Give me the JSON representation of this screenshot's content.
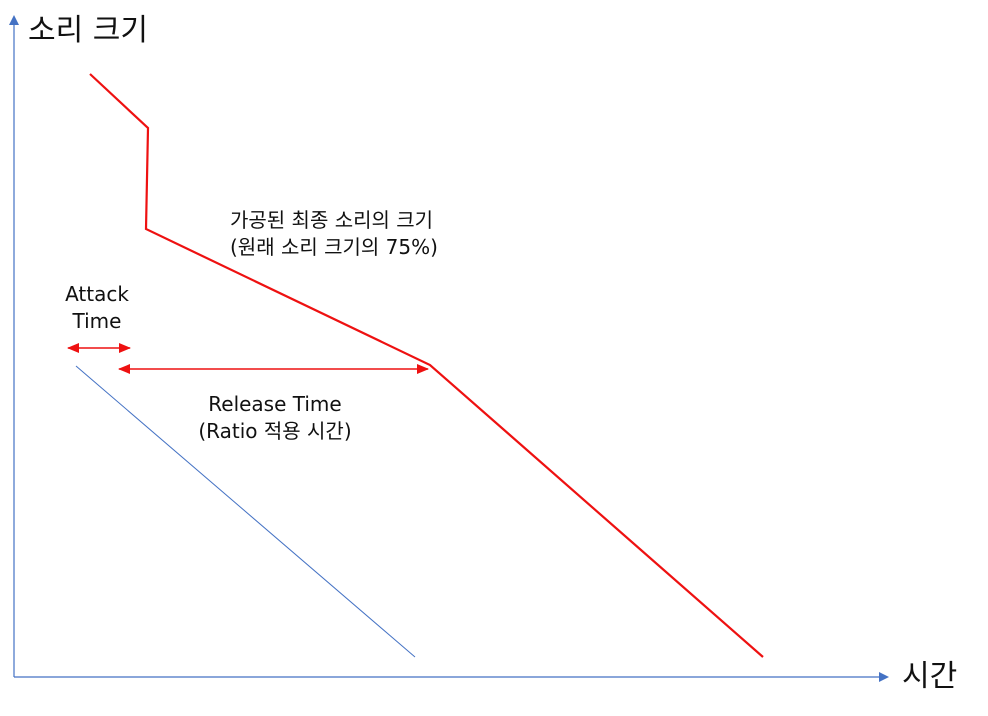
{
  "axes": {
    "y_label": "소리 크기",
    "x_label": "시간",
    "color": "#4472C4"
  },
  "annotations": {
    "processed_volume": {
      "line1": "가공된 최종 소리의 크기",
      "line2": "(원래 소리 크기의 75%)"
    },
    "attack_time": {
      "line1": "Attack",
      "line2": "Time"
    },
    "release_time": {
      "line1": "Release Time",
      "line2": "(Ratio 적용 시간)"
    }
  },
  "colors": {
    "processed_curve": "#EE1111",
    "reference_line": "#4472C4",
    "arrows": "#EE1111"
  }
}
